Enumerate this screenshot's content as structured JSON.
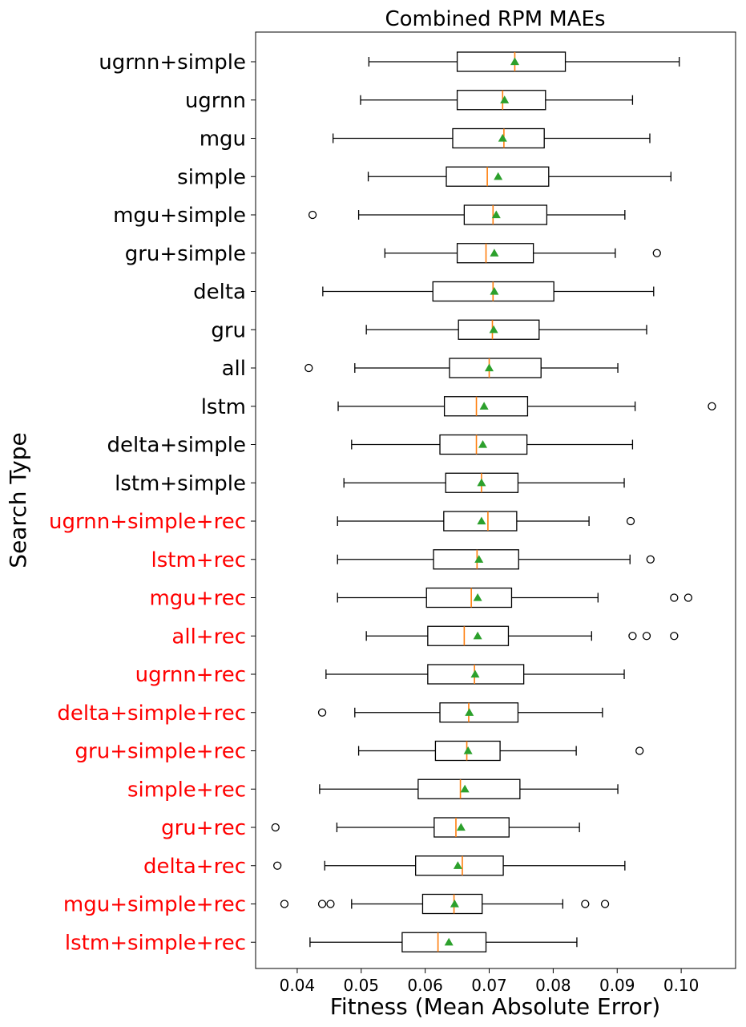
{
  "chart_data": {
    "type": "boxplot",
    "orientation": "horizontal",
    "title": "Combined RPM MAEs",
    "xlabel": "Fitness (Mean Absolute Error)",
    "ylabel": "Search Type",
    "xlim": [
      0.0335,
      0.1085
    ],
    "xticks": [
      "0.04",
      "0.05",
      "0.06",
      "0.07",
      "0.08",
      "0.09",
      "0.10"
    ],
    "colors": {
      "box": "#000000",
      "median": "#ff7f0e",
      "mean": "#2ca02c",
      "label_default": "#000000",
      "label_rec": "#ff0000"
    },
    "series": [
      {
        "name": "ugrnn+simple",
        "rec": false,
        "whislo": 0.0512,
        "q1": 0.065,
        "median": 0.074,
        "q3": 0.0819,
        "whishi": 0.0997,
        "mean": 0.074,
        "fliers": []
      },
      {
        "name": "ugrnn",
        "rec": false,
        "whislo": 0.0499,
        "q1": 0.065,
        "median": 0.0721,
        "q3": 0.0788,
        "whishi": 0.0924,
        "mean": 0.0724,
        "fliers": []
      },
      {
        "name": "mgu",
        "rec": false,
        "whislo": 0.0456,
        "q1": 0.0643,
        "median": 0.0723,
        "q3": 0.0786,
        "whishi": 0.0951,
        "mean": 0.0721,
        "fliers": []
      },
      {
        "name": "simple",
        "rec": false,
        "whislo": 0.0511,
        "q1": 0.0633,
        "median": 0.0697,
        "q3": 0.0793,
        "whishi": 0.0984,
        "mean": 0.0714,
        "fliers": []
      },
      {
        "name": "mgu+simple",
        "rec": false,
        "whislo": 0.0496,
        "q1": 0.0661,
        "median": 0.0706,
        "q3": 0.079,
        "whishi": 0.0912,
        "mean": 0.0711,
        "fliers": [
          0.0424
        ]
      },
      {
        "name": "gru+simple",
        "rec": false,
        "whislo": 0.0537,
        "q1": 0.065,
        "median": 0.0695,
        "q3": 0.0769,
        "whishi": 0.0897,
        "mean": 0.0708,
        "fliers": [
          0.0962
        ]
      },
      {
        "name": "delta",
        "rec": false,
        "whislo": 0.044,
        "q1": 0.0612,
        "median": 0.0706,
        "q3": 0.0801,
        "whishi": 0.0957,
        "mean": 0.0708,
        "fliers": []
      },
      {
        "name": "gru",
        "rec": false,
        "whislo": 0.0508,
        "q1": 0.0652,
        "median": 0.0705,
        "q3": 0.0778,
        "whishi": 0.0946,
        "mean": 0.0707,
        "fliers": []
      },
      {
        "name": "all",
        "rec": false,
        "whislo": 0.049,
        "q1": 0.0638,
        "median": 0.07,
        "q3": 0.0781,
        "whishi": 0.0901,
        "mean": 0.07,
        "fliers": [
          0.0418
        ]
      },
      {
        "name": "lstm",
        "rec": false,
        "whislo": 0.0464,
        "q1": 0.063,
        "median": 0.068,
        "q3": 0.076,
        "whishi": 0.0928,
        "mean": 0.0692,
        "fliers": [
          0.1048
        ]
      },
      {
        "name": "delta+simple",
        "rec": false,
        "whislo": 0.0485,
        "q1": 0.0623,
        "median": 0.068,
        "q3": 0.0759,
        "whishi": 0.0924,
        "mean": 0.069,
        "fliers": []
      },
      {
        "name": "lstm+simple",
        "rec": false,
        "whislo": 0.0473,
        "q1": 0.0632,
        "median": 0.0688,
        "q3": 0.0745,
        "whishi": 0.0911,
        "mean": 0.0688,
        "fliers": []
      },
      {
        "name": "ugrnn+simple+rec",
        "rec": true,
        "whislo": 0.0463,
        "q1": 0.0629,
        "median": 0.0698,
        "q3": 0.0743,
        "whishi": 0.0856,
        "mean": 0.0688,
        "fliers": [
          0.0921
        ]
      },
      {
        "name": "lstm+rec",
        "rec": true,
        "whislo": 0.0463,
        "q1": 0.0613,
        "median": 0.0681,
        "q3": 0.0746,
        "whishi": 0.092,
        "mean": 0.0684,
        "fliers": [
          0.0952
        ]
      },
      {
        "name": "mgu+rec",
        "rec": true,
        "whislo": 0.0463,
        "q1": 0.0602,
        "median": 0.0672,
        "q3": 0.0735,
        "whishi": 0.087,
        "mean": 0.0682,
        "fliers": [
          0.0989,
          0.1011
        ]
      },
      {
        "name": "all+rec",
        "rec": true,
        "whislo": 0.0508,
        "q1": 0.0604,
        "median": 0.0661,
        "q3": 0.073,
        "whishi": 0.086,
        "mean": 0.0682,
        "fliers": [
          0.0924,
          0.0946,
          0.0989
        ]
      },
      {
        "name": "ugrnn+rec",
        "rec": true,
        "whislo": 0.0445,
        "q1": 0.0604,
        "median": 0.0677,
        "q3": 0.0754,
        "whishi": 0.0911,
        "mean": 0.0678,
        "fliers": []
      },
      {
        "name": "delta+simple+rec",
        "rec": true,
        "whislo": 0.049,
        "q1": 0.0623,
        "median": 0.0668,
        "q3": 0.0745,
        "whishi": 0.0877,
        "mean": 0.0669,
        "fliers": [
          0.0439
        ]
      },
      {
        "name": "gru+simple+rec",
        "rec": true,
        "whislo": 0.0496,
        "q1": 0.0616,
        "median": 0.0665,
        "q3": 0.0717,
        "whishi": 0.0836,
        "mean": 0.0667,
        "fliers": [
          0.0935
        ]
      },
      {
        "name": "simple+rec",
        "rec": true,
        "whislo": 0.0435,
        "q1": 0.0589,
        "median": 0.0655,
        "q3": 0.0748,
        "whishi": 0.0901,
        "mean": 0.0662,
        "fliers": []
      },
      {
        "name": "gru+rec",
        "rec": true,
        "whislo": 0.0462,
        "q1": 0.0614,
        "median": 0.0648,
        "q3": 0.0731,
        "whishi": 0.0841,
        "mean": 0.0656,
        "fliers": [
          0.0366
        ]
      },
      {
        "name": "delta+rec",
        "rec": true,
        "whislo": 0.0443,
        "q1": 0.0585,
        "median": 0.0658,
        "q3": 0.0722,
        "whishi": 0.0912,
        "mean": 0.0651,
        "fliers": [
          0.0369
        ]
      },
      {
        "name": "mgu+simple+rec",
        "rec": true,
        "whislo": 0.0485,
        "q1": 0.0596,
        "median": 0.0645,
        "q3": 0.0689,
        "whishi": 0.0815,
        "mean": 0.0646,
        "fliers": [
          0.038,
          0.0439,
          0.0452,
          0.085,
          0.0881
        ]
      },
      {
        "name": "lstm+simple+rec",
        "rec": true,
        "whislo": 0.042,
        "q1": 0.0564,
        "median": 0.062,
        "q3": 0.0695,
        "whishi": 0.0837,
        "mean": 0.0637,
        "fliers": []
      }
    ]
  }
}
